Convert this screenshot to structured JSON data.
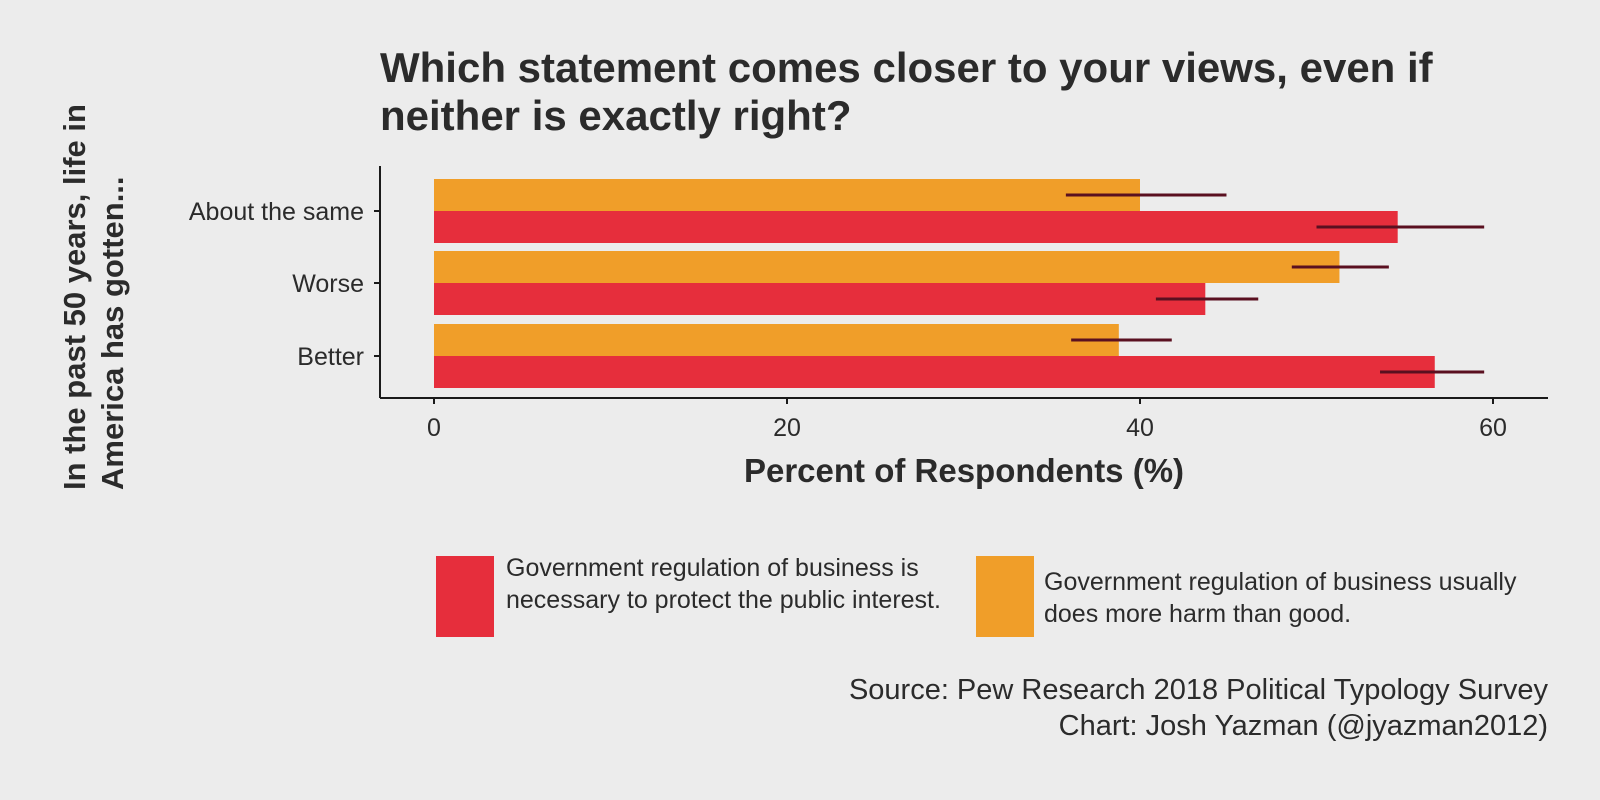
{
  "chart_data": {
    "type": "bar",
    "orientation": "horizontal",
    "title": "Which statement comes closer to your views, even if neither is exactly right?",
    "xlabel": "Percent of Respondents (%)",
    "ylabel": "In the past 50 years, life in America has gotten...",
    "categories": [
      "About the same",
      "Worse",
      "Better"
    ],
    "xlim": [
      0,
      63
    ],
    "xticks": [
      0,
      20,
      40,
      60
    ],
    "grid": false,
    "legend_position": "bottom",
    "series": [
      {
        "name": "Government regulation of business usually does more harm than good.",
        "color": "#f09e29",
        "values": [
          40.0,
          51.3,
          38.8
        ],
        "error_low": [
          35.8,
          48.6,
          36.1
        ],
        "error_high": [
          44.9,
          54.1,
          41.8
        ]
      },
      {
        "name": "Government regulation of business is necessary to protect the public interest.",
        "color": "#e62e3c",
        "values": [
          54.6,
          43.7,
          56.7
        ],
        "error_low": [
          50.0,
          40.9,
          53.6
        ],
        "error_high": [
          59.5,
          46.7,
          59.5
        ]
      }
    ],
    "errorbar_color": "#5a1020"
  },
  "legend": {
    "items": [
      {
        "label": "Government regulation of business is necessary to protect the public interest.",
        "color": "#e62e3c"
      },
      {
        "label": "Government regulation of business usually does more harm than good.",
        "color": "#f09e29"
      }
    ]
  },
  "source": {
    "line1": "Source: Pew Research 2018 Political Typology Survey",
    "line2": "Chart: Josh Yazman (@jyazman2012)"
  }
}
